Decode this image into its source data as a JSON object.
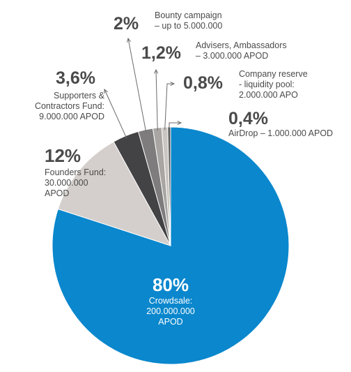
{
  "chart_data": {
    "type": "pie",
    "title": "",
    "slices": [
      {
        "label": "Crowdsale:\n200.000.000\nAPOD",
        "percent_label": "80%",
        "value": 80,
        "color": "#0a87cd"
      },
      {
        "label": "Founders Fund:\n30.000.000\nAPOD",
        "percent_label": "12%",
        "value": 12,
        "color": "#d4cfcc"
      },
      {
        "label": "Supporters &\nContractors Fund:\n9.000.000 APOD",
        "percent_label": "3,6%",
        "value": 3.6,
        "color": "#434244"
      },
      {
        "label": "Bounty campaign\n– up to 5.000.000",
        "percent_label": "2%",
        "value": 2,
        "color": "#7e7c7c"
      },
      {
        "label": "Advisers, Ambassadors\n– 3.000.000 APOD",
        "percent_label": "1,2%",
        "value": 1.2,
        "color": "#a8a5a3"
      },
      {
        "label": "Company reserve\n- liquidity pool:\n2.000.000 APO",
        "percent_label": "0,8%",
        "value": 0.8,
        "color": "#c9c5c2"
      },
      {
        "label": "AirDrop – 1.000.000 APOD",
        "percent_label": "0,4%",
        "value": 0.4,
        "color": "#5d5c5d"
      }
    ]
  }
}
